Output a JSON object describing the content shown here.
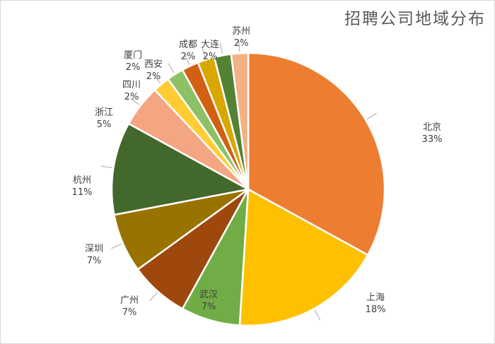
{
  "chart_data": {
    "type": "pie",
    "title": "招聘公司地域分布",
    "slices": [
      {
        "name": "北京",
        "label": "33%",
        "value": 33,
        "color": "#ED7D31"
      },
      {
        "name": "上海",
        "label": "18%",
        "value": 18,
        "color": "#FFC000"
      },
      {
        "name": "武汉",
        "label": "7%",
        "value": 7,
        "color": "#70AD47"
      },
      {
        "name": "广州",
        "label": "7%",
        "value": 7,
        "color": "#9E480E"
      },
      {
        "name": "深圳",
        "label": "7%",
        "value": 7,
        "color": "#997300"
      },
      {
        "name": "杭州",
        "label": "11%",
        "value": 11,
        "color": "#43682B"
      },
      {
        "name": "浙江",
        "label": "5%",
        "value": 5,
        "color": "#F4A582"
      },
      {
        "name": "四川",
        "label": "2%",
        "value": 2,
        "color": "#FFCD33"
      },
      {
        "name": "厦门",
        "label": "2%",
        "value": 2,
        "color": "#8CC168"
      },
      {
        "name": "西安",
        "label": "2%",
        "value": 2,
        "color": "#D26012"
      },
      {
        "name": "成都",
        "label": "2%",
        "value": 2,
        "color": "#D6A800"
      },
      {
        "name": "大连",
        "label": "2%",
        "value": 2,
        "color": "#548235"
      },
      {
        "name": "苏州",
        "label": "2%",
        "value": 2,
        "color": "#F4B183"
      }
    ]
  }
}
